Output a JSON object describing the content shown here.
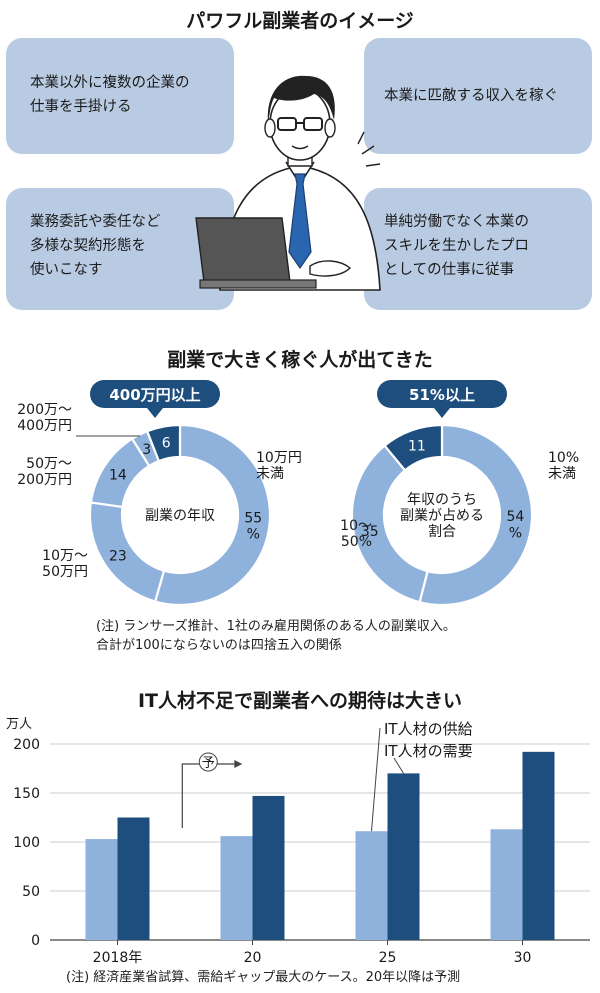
{
  "section1": {
    "title": "パワフル副業者のイメージ",
    "cards": [
      {
        "text": "本業以外に複数の企業の\n仕事を手掛ける"
      },
      {
        "text": "本業に匹敵する収入を稼ぐ"
      },
      {
        "text": "業務委託や委任など\n多様な契約形態を\n使いこなす"
      },
      {
        "text": "単純労働でなく本業の\nスキルを生かしたプロ\nとしての仕事に従事"
      }
    ]
  },
  "section2": {
    "title": "副業で大きく稼ぐ人が出てきた",
    "note": "(注) ランサーズ推計、1社のみ雇用関係のある人の副業収入。\n合計が100にならないのは四捨五入の関係"
  },
  "section3": {
    "title": "IT人材不足で副業者への期待は大きい",
    "unit": "万人",
    "forecast_label": "予",
    "note": "(注) 経済産業省試算、需給ギャップ最大のケース。20年以降は予測"
  },
  "colors": {
    "light": "#8fb2dc",
    "dark": "#1d4e7e",
    "card": "#b9cbe2"
  },
  "chart_data": [
    {
      "type": "pie",
      "variant": "donut",
      "center_label": "副業の年収",
      "callout": "400万円以上",
      "slices": [
        {
          "label": "10万円未満",
          "value": 55,
          "value_text": "55\n%",
          "color": "#8fb2dc"
        },
        {
          "label": "10万～50万円",
          "value": 23,
          "value_text": "23",
          "color": "#8fb2dc"
        },
        {
          "label": "50万～200万円",
          "value": 14,
          "value_text": "14",
          "color": "#8fb2dc"
        },
        {
          "label": "200万～400万円",
          "value": 3,
          "value_text": "3",
          "color": "#8fb2dc"
        },
        {
          "label": "400万円以上",
          "value": 6,
          "value_text": "6",
          "color": "#1d4e7e"
        }
      ]
    },
    {
      "type": "pie",
      "variant": "donut",
      "center_label": "年収のうち\n副業が占める\n割合",
      "callout": "51%以上",
      "slices": [
        {
          "label": "10%未満",
          "value": 54,
          "value_text": "54\n%",
          "color": "#8fb2dc"
        },
        {
          "label": "10～50%",
          "value": 35,
          "value_text": "35",
          "color": "#8fb2dc"
        },
        {
          "label": "51%以上",
          "value": 11,
          "value_text": "11",
          "color": "#1d4e7e"
        }
      ]
    },
    {
      "type": "bar",
      "categories": [
        "2018年",
        "20",
        "25",
        "30"
      ],
      "series": [
        {
          "name": "IT人材の供給",
          "values": [
            103,
            106,
            111,
            113
          ],
          "color": "#8fb2dc"
        },
        {
          "name": "IT人材の需要",
          "values": [
            125,
            147,
            170,
            192
          ],
          "color": "#1d4e7e"
        }
      ],
      "ylabel": "万人",
      "ylim": [
        0,
        200
      ],
      "yticks": [
        0,
        50,
        100,
        150,
        200
      ]
    }
  ]
}
